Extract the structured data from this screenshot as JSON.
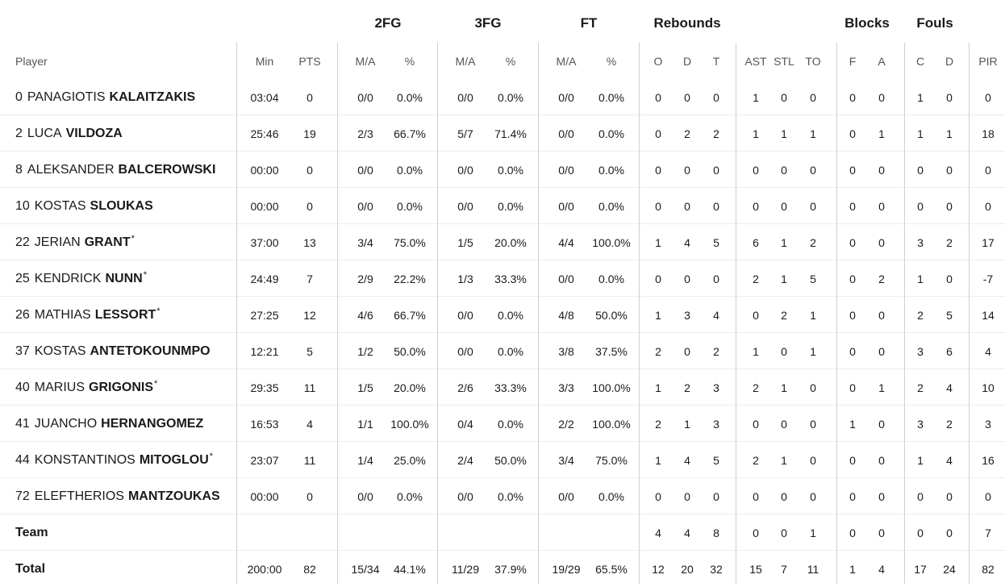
{
  "groups": {
    "fg2": "2FG",
    "fg3": "3FG",
    "ft": "FT",
    "rebounds": "Rebounds",
    "blocks": "Blocks",
    "fouls": "Fouls"
  },
  "columns": {
    "player": "Player",
    "min": "Min",
    "pts": "PTS",
    "fg2_ma": "M/A",
    "fg2_pct": "%",
    "fg3_ma": "M/A",
    "fg3_pct": "%",
    "ft_ma": "M/A",
    "ft_pct": "%",
    "reb_o": "O",
    "reb_d": "D",
    "reb_t": "T",
    "ast": "AST",
    "stl": "STL",
    "to": "TO",
    "blk_f": "F",
    "blk_a": "A",
    "foul_c": "C",
    "foul_d": "D",
    "pir": "PIR"
  },
  "players": [
    {
      "num": "0",
      "first": "PANAGIOTIS",
      "last": "KALAITZAKIS",
      "star": "",
      "min": "03:04",
      "pts": "0",
      "fg2_ma": "0/0",
      "fg2_pct": "0.0%",
      "fg3_ma": "0/0",
      "fg3_pct": "0.0%",
      "ft_ma": "0/0",
      "ft_pct": "0.0%",
      "reb_o": "0",
      "reb_d": "0",
      "reb_t": "0",
      "ast": "1",
      "stl": "0",
      "to": "0",
      "blk_f": "0",
      "blk_a": "0",
      "foul_c": "1",
      "foul_d": "0",
      "pir": "0"
    },
    {
      "num": "2",
      "first": "LUCA",
      "last": "VILDOZA",
      "star": "",
      "min": "25:46",
      "pts": "19",
      "fg2_ma": "2/3",
      "fg2_pct": "66.7%",
      "fg3_ma": "5/7",
      "fg3_pct": "71.4%",
      "ft_ma": "0/0",
      "ft_pct": "0.0%",
      "reb_o": "0",
      "reb_d": "2",
      "reb_t": "2",
      "ast": "1",
      "stl": "1",
      "to": "1",
      "blk_f": "0",
      "blk_a": "1",
      "foul_c": "1",
      "foul_d": "1",
      "pir": "18"
    },
    {
      "num": "8",
      "first": "ALEKSANDER",
      "last": "BALCEROWSKI",
      "star": "",
      "min": "00:00",
      "pts": "0",
      "fg2_ma": "0/0",
      "fg2_pct": "0.0%",
      "fg3_ma": "0/0",
      "fg3_pct": "0.0%",
      "ft_ma": "0/0",
      "ft_pct": "0.0%",
      "reb_o": "0",
      "reb_d": "0",
      "reb_t": "0",
      "ast": "0",
      "stl": "0",
      "to": "0",
      "blk_f": "0",
      "blk_a": "0",
      "foul_c": "0",
      "foul_d": "0",
      "pir": "0"
    },
    {
      "num": "10",
      "first": "KOSTAS",
      "last": "SLOUKAS",
      "star": "",
      "min": "00:00",
      "pts": "0",
      "fg2_ma": "0/0",
      "fg2_pct": "0.0%",
      "fg3_ma": "0/0",
      "fg3_pct": "0.0%",
      "ft_ma": "0/0",
      "ft_pct": "0.0%",
      "reb_o": "0",
      "reb_d": "0",
      "reb_t": "0",
      "ast": "0",
      "stl": "0",
      "to": "0",
      "blk_f": "0",
      "blk_a": "0",
      "foul_c": "0",
      "foul_d": "0",
      "pir": "0"
    },
    {
      "num": "22",
      "first": "JERIAN",
      "last": "GRANT",
      "star": "*",
      "min": "37:00",
      "pts": "13",
      "fg2_ma": "3/4",
      "fg2_pct": "75.0%",
      "fg3_ma": "1/5",
      "fg3_pct": "20.0%",
      "ft_ma": "4/4",
      "ft_pct": "100.0%",
      "reb_o": "1",
      "reb_d": "4",
      "reb_t": "5",
      "ast": "6",
      "stl": "1",
      "to": "2",
      "blk_f": "0",
      "blk_a": "0",
      "foul_c": "3",
      "foul_d": "2",
      "pir": "17"
    },
    {
      "num": "25",
      "first": "KENDRICK",
      "last": "NUNN",
      "star": "*",
      "min": "24:49",
      "pts": "7",
      "fg2_ma": "2/9",
      "fg2_pct": "22.2%",
      "fg3_ma": "1/3",
      "fg3_pct": "33.3%",
      "ft_ma": "0/0",
      "ft_pct": "0.0%",
      "reb_o": "0",
      "reb_d": "0",
      "reb_t": "0",
      "ast": "2",
      "stl": "1",
      "to": "5",
      "blk_f": "0",
      "blk_a": "2",
      "foul_c": "1",
      "foul_d": "0",
      "pir": "-7"
    },
    {
      "num": "26",
      "first": "MATHIAS",
      "last": "LESSORT",
      "star": "*",
      "min": "27:25",
      "pts": "12",
      "fg2_ma": "4/6",
      "fg2_pct": "66.7%",
      "fg3_ma": "0/0",
      "fg3_pct": "0.0%",
      "ft_ma": "4/8",
      "ft_pct": "50.0%",
      "reb_o": "1",
      "reb_d": "3",
      "reb_t": "4",
      "ast": "0",
      "stl": "2",
      "to": "1",
      "blk_f": "0",
      "blk_a": "0",
      "foul_c": "2",
      "foul_d": "5",
      "pir": "14"
    },
    {
      "num": "37",
      "first": "KOSTAS",
      "last": "ANTETOKOUNMPO",
      "star": "",
      "min": "12:21",
      "pts": "5",
      "fg2_ma": "1/2",
      "fg2_pct": "50.0%",
      "fg3_ma": "0/0",
      "fg3_pct": "0.0%",
      "ft_ma": "3/8",
      "ft_pct": "37.5%",
      "reb_o": "2",
      "reb_d": "0",
      "reb_t": "2",
      "ast": "1",
      "stl": "0",
      "to": "1",
      "blk_f": "0",
      "blk_a": "0",
      "foul_c": "3",
      "foul_d": "6",
      "pir": "4"
    },
    {
      "num": "40",
      "first": "MARIUS",
      "last": "GRIGONIS",
      "star": "*",
      "min": "29:35",
      "pts": "11",
      "fg2_ma": "1/5",
      "fg2_pct": "20.0%",
      "fg3_ma": "2/6",
      "fg3_pct": "33.3%",
      "ft_ma": "3/3",
      "ft_pct": "100.0%",
      "reb_o": "1",
      "reb_d": "2",
      "reb_t": "3",
      "ast": "2",
      "stl": "1",
      "to": "0",
      "blk_f": "0",
      "blk_a": "1",
      "foul_c": "2",
      "foul_d": "4",
      "pir": "10"
    },
    {
      "num": "41",
      "first": "JUANCHO",
      "last": "HERNANGOMEZ",
      "star": "",
      "min": "16:53",
      "pts": "4",
      "fg2_ma": "1/1",
      "fg2_pct": "100.0%",
      "fg3_ma": "0/4",
      "fg3_pct": "0.0%",
      "ft_ma": "2/2",
      "ft_pct": "100.0%",
      "reb_o": "2",
      "reb_d": "1",
      "reb_t": "3",
      "ast": "0",
      "stl": "0",
      "to": "0",
      "blk_f": "1",
      "blk_a": "0",
      "foul_c": "3",
      "foul_d": "2",
      "pir": "3"
    },
    {
      "num": "44",
      "first": "KONSTANTINOS",
      "last": "MITOGLOU",
      "star": "*",
      "min": "23:07",
      "pts": "11",
      "fg2_ma": "1/4",
      "fg2_pct": "25.0%",
      "fg3_ma": "2/4",
      "fg3_pct": "50.0%",
      "ft_ma": "3/4",
      "ft_pct": "75.0%",
      "reb_o": "1",
      "reb_d": "4",
      "reb_t": "5",
      "ast": "2",
      "stl": "1",
      "to": "0",
      "blk_f": "0",
      "blk_a": "0",
      "foul_c": "1",
      "foul_d": "4",
      "pir": "16"
    },
    {
      "num": "72",
      "first": "ELEFTHERIOS",
      "last": "MANTZOUKAS",
      "star": "",
      "min": "00:00",
      "pts": "0",
      "fg2_ma": "0/0",
      "fg2_pct": "0.0%",
      "fg3_ma": "0/0",
      "fg3_pct": "0.0%",
      "ft_ma": "0/0",
      "ft_pct": "0.0%",
      "reb_o": "0",
      "reb_d": "0",
      "reb_t": "0",
      "ast": "0",
      "stl": "0",
      "to": "0",
      "blk_f": "0",
      "blk_a": "0",
      "foul_c": "0",
      "foul_d": "0",
      "pir": "0"
    }
  ],
  "team": {
    "label": "Team",
    "reb_o": "4",
    "reb_d": "4",
    "reb_t": "8",
    "ast": "0",
    "stl": "0",
    "to": "1",
    "blk_f": "0",
    "blk_a": "0",
    "foul_c": "0",
    "foul_d": "0",
    "pir": "7"
  },
  "total": {
    "label": "Total",
    "min": "200:00",
    "pts": "82",
    "fg2_ma": "15/34",
    "fg2_pct": "44.1%",
    "fg3_ma": "11/29",
    "fg3_pct": "37.9%",
    "ft_ma": "19/29",
    "ft_pct": "65.5%",
    "reb_o": "12",
    "reb_d": "20",
    "reb_t": "32",
    "ast": "15",
    "stl": "7",
    "to": "11",
    "blk_f": "1",
    "blk_a": "4",
    "foul_c": "17",
    "foul_d": "24",
    "pir": "82"
  }
}
